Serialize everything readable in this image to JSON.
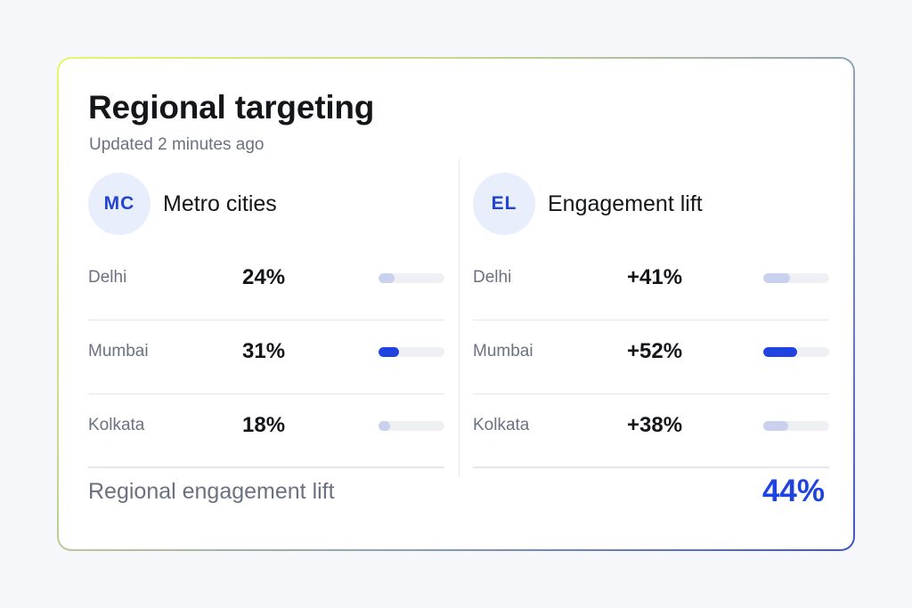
{
  "card": {
    "title": "Regional targeting",
    "subtitle": "Updated 2 minutes ago"
  },
  "columns": [
    {
      "badge": "MC",
      "title": "Metro cities",
      "rows": [
        {
          "city": "Delhi",
          "value": "24%",
          "bar_fraction": 0.24,
          "highlight": false
        },
        {
          "city": "Mumbai",
          "value": "31%",
          "bar_fraction": 0.31,
          "highlight": true
        },
        {
          "city": "Kolkata",
          "value": "18%",
          "bar_fraction": 0.18,
          "highlight": false
        }
      ]
    },
    {
      "badge": "EL",
      "title": "Engagement lift",
      "rows": [
        {
          "city": "Delhi",
          "value": "+41%",
          "bar_fraction": 0.41,
          "highlight": false
        },
        {
          "city": "Mumbai",
          "value": "+52%",
          "bar_fraction": 0.52,
          "highlight": true
        },
        {
          "city": "Kolkata",
          "value": "+38%",
          "bar_fraction": 0.38,
          "highlight": false
        }
      ]
    }
  ],
  "footer": {
    "label": "Regional engagement lift",
    "value": "44%"
  },
  "colors": {
    "accent": "#1f43e0",
    "bar_muted": "#c9d1ee",
    "badge_bg": "#e8eefc"
  }
}
